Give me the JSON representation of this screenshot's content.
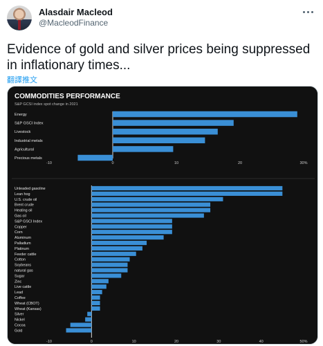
{
  "tweet": {
    "author_name": "Alasdair Macleod",
    "author_handle": "@MacleodFinance",
    "text": "Evidence of gold and silver prices being suppressed in inflationary times...",
    "translate_label": "翻譯推文",
    "more_icon": "more-horizontal-icon",
    "accent_color": "#1d9bf0"
  },
  "chart_data": [
    {
      "type": "bar",
      "orientation": "horizontal",
      "title": "COMMODITIES PERFORMANCE",
      "subtitle": "S&P GCSI index spot change in 2021",
      "categories": [
        "Energy",
        "S&P GSCI Index",
        "Livestock",
        "Industrial metals",
        "Agricultural",
        "Precious metals"
      ],
      "values": [
        29,
        19,
        16.5,
        14.5,
        9.5,
        -5.5
      ],
      "xlim": [
        -10,
        30
      ],
      "tick_labels": [
        "-10",
        "0",
        "10",
        "20",
        "30%"
      ],
      "bar_color": "#3a8fd6",
      "background": "#111111",
      "grid": false
    },
    {
      "type": "bar",
      "orientation": "horizontal",
      "categories": [
        "Unleaded gasoline",
        "Lean hog",
        "U.S. crude oil",
        "Brent crude",
        "Heating oil",
        "Gas oil",
        "S&P GSCI Index",
        "Copper",
        "Corn",
        "Aluminum",
        "Palladium",
        "Platinum",
        "Feeder cattle",
        "Cotton",
        "Soybeans",
        "natural gas",
        "Sugar",
        "Zinc",
        "Live cattle",
        "Lead",
        "Coffee",
        "Wheat (CBOT)",
        "Wheat (Kansas)",
        "Silver",
        "Nickel",
        "Cocoa",
        "Gold"
      ],
      "values": [
        45,
        45,
        31,
        28,
        28,
        26.5,
        19,
        19,
        19,
        17,
        13,
        12,
        10.5,
        9,
        8.5,
        8.5,
        7,
        4,
        3.5,
        2.5,
        2,
        2,
        2,
        -1,
        -1.5,
        -5,
        -6
      ],
      "xlim": [
        -10,
        50
      ],
      "tick_labels": [
        "-10",
        "0",
        "10",
        "20",
        "30",
        "40",
        "50%"
      ],
      "bar_color": "#3a8fd6",
      "background": "#111111",
      "grid": false
    }
  ]
}
